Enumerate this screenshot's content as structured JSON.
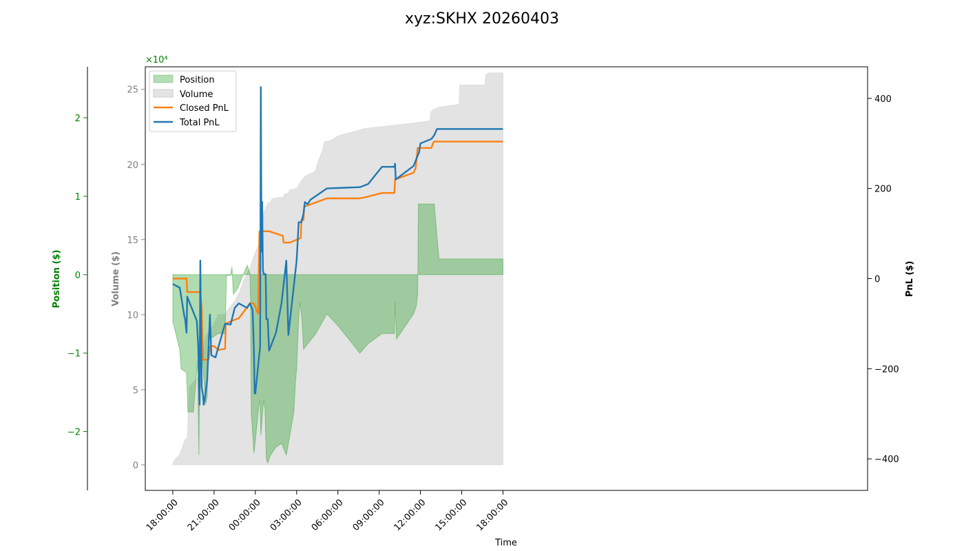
{
  "chart_data": {
    "type": "line",
    "title": "xyz:SKHX 20260403",
    "xlabel": "Time",
    "x_unit": "hours since 18:00:00",
    "xlim": [
      -2.0,
      50.5
    ],
    "x_ticks": [
      0,
      3,
      6,
      9,
      12,
      15,
      18,
      21,
      24
    ],
    "x_tick_labels": [
      "18:00:00",
      "21:00:00",
      "00:00:00",
      "03:00:00",
      "06:00:00",
      "09:00:00",
      "12:00:00",
      "15:00:00",
      "18:00:00"
    ],
    "axes": {
      "pnl": {
        "label": "PnL ($)",
        "color": "#000000",
        "ylim": [
          -470,
          470
        ],
        "ticks": [
          -400,
          -200,
          0,
          200,
          400
        ],
        "tick_labels": [
          "−400",
          "−200",
          "0",
          "200",
          "400"
        ]
      },
      "volume": {
        "label": "Volume ($)",
        "color": "#808080",
        "ylim": [
          -17000,
          265000
        ],
        "ticks": [
          0,
          50000,
          100000,
          150000,
          200000,
          250000
        ],
        "tick_labels": [
          "0",
          "5",
          "10",
          "15",
          "20",
          "25"
        ],
        "multiplier": "×10⁴"
      },
      "position": {
        "label": "Position ($)",
        "color": "#008000",
        "ylim": [
          -27500,
          26500
        ],
        "ticks": [
          -20000,
          -10000,
          0,
          10000,
          20000
        ],
        "tick_labels": [
          "−2",
          "−1",
          "0",
          "1",
          "2"
        ],
        "multiplier": "×10⁴"
      }
    },
    "legend": [
      "Position",
      "Volume",
      "Closed PnL",
      "Total PnL"
    ],
    "legend_location": "upper-left",
    "series": [
      {
        "name": "Volume",
        "type": "area",
        "axis": "volume",
        "color": "#cccccc",
        "points": [
          [
            0,
            0
          ],
          [
            0.1,
            3000
          ],
          [
            0.5,
            7000
          ],
          [
            0.9,
            17000
          ],
          [
            1,
            17000
          ],
          [
            1.05,
            18000
          ],
          [
            1.2,
            52000
          ],
          [
            1.8,
            58000
          ],
          [
            1.9,
            59000
          ],
          [
            1.95,
            63000
          ],
          [
            2,
            68000
          ],
          [
            2.1,
            70000
          ],
          [
            2.3,
            80000
          ],
          [
            2.4,
            86000
          ],
          [
            2.6,
            88000
          ],
          [
            2.7,
            90000
          ],
          [
            2.9,
            92000
          ],
          [
            3.3,
            100000
          ],
          [
            3.8,
            100000
          ],
          [
            3.9,
            102000
          ],
          [
            4.5,
            109000
          ],
          [
            4.9,
            116000
          ],
          [
            5.2,
            124000
          ],
          [
            5.6,
            131000
          ],
          [
            5.9,
            139000
          ],
          [
            6.3,
            148000
          ],
          [
            6.5,
            150000
          ],
          [
            6.55,
            158000
          ],
          [
            6.6,
            168000
          ],
          [
            6.9,
            174000
          ],
          [
            7.1,
            175000
          ],
          [
            7.2,
            177000
          ],
          [
            7.6,
            178000
          ],
          [
            8,
            178000
          ],
          [
            8.1,
            180000
          ],
          [
            8.4,
            181000
          ],
          [
            8.5,
            183000
          ],
          [
            9,
            184000
          ],
          [
            9.4,
            190000
          ],
          [
            9.6,
            192000
          ],
          [
            10,
            194000
          ],
          [
            10.3,
            195000
          ],
          [
            10.4,
            197000
          ],
          [
            10.5,
            200000
          ],
          [
            10.6,
            203000
          ],
          [
            10.9,
            210000
          ],
          [
            11,
            215000
          ],
          [
            11.5,
            216000
          ],
          [
            12,
            219000
          ],
          [
            14,
            224000
          ],
          [
            17,
            227000
          ],
          [
            18.7,
            229000
          ],
          [
            18.75,
            235000
          ],
          [
            19,
            237000
          ],
          [
            19.3,
            238000
          ],
          [
            20.8,
            240000
          ],
          [
            20.85,
            253000
          ],
          [
            21,
            253000
          ],
          [
            22.7,
            253000
          ],
          [
            22.75,
            260000
          ],
          [
            23,
            261000
          ],
          [
            24,
            261000
          ],
          [
            24,
            0
          ]
        ]
      },
      {
        "name": "Position",
        "type": "area",
        "axis": "position",
        "color": "#2ca02c",
        "points": [
          [
            0,
            -6000
          ],
          [
            0.5,
            -9500
          ],
          [
            0.6,
            -12000
          ],
          [
            1,
            -12500
          ],
          [
            1.1,
            -17500
          ],
          [
            1.5,
            -17500
          ],
          [
            1.8,
            -11000
          ],
          [
            1.85,
            -17500
          ],
          [
            1.9,
            -23000
          ],
          [
            2,
            -1200
          ],
          [
            2.1,
            -10000
          ],
          [
            2.2,
            -12000
          ],
          [
            2.4,
            -16500
          ],
          [
            2.5,
            -15500
          ],
          [
            2.6,
            -8000
          ],
          [
            2.9,
            -8000
          ],
          [
            3.3,
            -7500
          ],
          [
            3.8,
            -7500
          ],
          [
            3.9,
            -100
          ],
          [
            4.2,
            -100
          ],
          [
            4.3,
            1000
          ],
          [
            4.4,
            -2500
          ],
          [
            4.7,
            -1800
          ],
          [
            5.4,
            1200
          ],
          [
            5.6,
            200
          ],
          [
            5.65,
            -3000
          ],
          [
            5.7,
            -17500
          ],
          [
            5.9,
            -22800
          ],
          [
            6.3,
            -16000
          ],
          [
            6.35,
            -16500
          ],
          [
            6.4,
            -20500
          ],
          [
            6.6,
            -16000
          ],
          [
            6.7,
            -17000
          ],
          [
            6.8,
            -23500
          ],
          [
            6.9,
            -24000
          ],
          [
            7.1,
            -23000
          ],
          [
            7.5,
            -22000
          ],
          [
            7.9,
            -21500
          ],
          [
            8.25,
            -23000
          ],
          [
            8.4,
            -21500
          ],
          [
            8.8,
            -17500
          ],
          [
            8.9,
            -14000
          ],
          [
            9.0,
            -12000
          ],
          [
            9.15,
            -5500
          ],
          [
            9.25,
            -3500
          ],
          [
            9.4,
            -6000
          ],
          [
            9.5,
            -9500
          ],
          [
            10.4,
            -7500
          ],
          [
            11.2,
            -5000
          ],
          [
            12,
            -6500
          ],
          [
            13.6,
            -10000
          ],
          [
            14.2,
            -8800
          ],
          [
            15.2,
            -7500
          ],
          [
            16.1,
            -7500
          ],
          [
            16.15,
            -3500
          ],
          [
            16.25,
            -8200
          ],
          [
            17.5,
            -5000
          ],
          [
            17.7,
            -4000
          ],
          [
            17.8,
            -2500
          ],
          [
            17.85,
            9000
          ],
          [
            19.0,
            9000
          ],
          [
            19.25,
            4000
          ],
          [
            19.35,
            2000
          ],
          [
            24,
            2000
          ],
          [
            24,
            0
          ],
          [
            0,
            0
          ]
        ]
      },
      {
        "name": "Closed PnL",
        "type": "line",
        "axis": "pnl",
        "color": "#ff7f0e",
        "points": [
          [
            0,
            0
          ],
          [
            1.0,
            0
          ],
          [
            1.05,
            -30
          ],
          [
            2.0,
            -30
          ],
          [
            2.05,
            -50
          ],
          [
            2.1,
            -60
          ],
          [
            2.2,
            -180
          ],
          [
            2.6,
            -180
          ],
          [
            2.7,
            -150
          ],
          [
            3.0,
            -150
          ],
          [
            3.3,
            -158
          ],
          [
            3.8,
            -156
          ],
          [
            3.85,
            -100
          ],
          [
            4.2,
            -95
          ],
          [
            4.6,
            -90
          ],
          [
            4.8,
            -88
          ],
          [
            5.6,
            -55
          ],
          [
            5.9,
            -55
          ],
          [
            6.2,
            -78
          ],
          [
            6.3,
            105
          ],
          [
            6.5,
            105
          ],
          [
            7.0,
            105
          ],
          [
            8.0,
            95
          ],
          [
            8.05,
            80
          ],
          [
            8.5,
            80
          ],
          [
            9.3,
            90
          ],
          [
            9.35,
            130
          ],
          [
            9.5,
            130
          ],
          [
            9.55,
            160
          ],
          [
            9.6,
            160
          ],
          [
            11.2,
            178
          ],
          [
            13.6,
            178
          ],
          [
            14.2,
            182
          ],
          [
            15.2,
            190
          ],
          [
            16.1,
            190
          ],
          [
            16.15,
            220
          ],
          [
            17.5,
            235
          ],
          [
            17.65,
            245
          ],
          [
            17.7,
            260
          ],
          [
            17.8,
            290
          ],
          [
            18.8,
            290
          ],
          [
            18.9,
            300
          ],
          [
            19.0,
            304
          ],
          [
            24,
            304
          ]
        ]
      },
      {
        "name": "Total PnL",
        "type": "line",
        "axis": "pnl",
        "color": "#1f77b4",
        "points": [
          [
            0,
            -12
          ],
          [
            0.5,
            -20
          ],
          [
            0.85,
            -85
          ],
          [
            0.9,
            -90
          ],
          [
            1.0,
            -120
          ],
          [
            1.05,
            -40
          ],
          [
            1.7,
            -90
          ],
          [
            1.75,
            -95
          ],
          [
            1.85,
            -150
          ],
          [
            1.95,
            -280
          ],
          [
            2.0,
            40
          ],
          [
            2.1,
            -240
          ],
          [
            2.2,
            -260
          ],
          [
            2.25,
            -280
          ],
          [
            2.35,
            -260
          ],
          [
            2.5,
            -225
          ],
          [
            2.7,
            -80
          ],
          [
            2.8,
            -170
          ],
          [
            3.1,
            -175
          ],
          [
            3.8,
            -100
          ],
          [
            4.2,
            -102
          ],
          [
            4.5,
            -65
          ],
          [
            4.8,
            -55
          ],
          [
            5.4,
            -65
          ],
          [
            5.6,
            -55
          ],
          [
            5.8,
            -70
          ],
          [
            5.9,
            -160
          ],
          [
            5.95,
            -255
          ],
          [
            6.0,
            -255
          ],
          [
            6.35,
            -150
          ],
          [
            6.4,
            425
          ],
          [
            6.45,
            60
          ],
          [
            6.5,
            170
          ],
          [
            6.55,
            20
          ],
          [
            6.6,
            10
          ],
          [
            6.75,
            10
          ],
          [
            6.8,
            -90
          ],
          [
            6.9,
            -90
          ],
          [
            7.0,
            -160
          ],
          [
            7.5,
            -120
          ],
          [
            7.9,
            -55
          ],
          [
            8.25,
            40
          ],
          [
            8.4,
            -125
          ],
          [
            9.0,
            40
          ],
          [
            9.15,
            125
          ],
          [
            9.35,
            125
          ],
          [
            9.5,
            145
          ],
          [
            9.6,
            170
          ],
          [
            9.8,
            165
          ],
          [
            10.0,
            175
          ],
          [
            11.2,
            200
          ],
          [
            13.6,
            203
          ],
          [
            14.2,
            210
          ],
          [
            15.2,
            248
          ],
          [
            16.1,
            248
          ],
          [
            16.15,
            255
          ],
          [
            16.2,
            220
          ],
          [
            17.5,
            250
          ],
          [
            17.8,
            273
          ],
          [
            17.9,
            280
          ],
          [
            18.0,
            300
          ],
          [
            18.8,
            310
          ],
          [
            19.0,
            318
          ],
          [
            19.2,
            332
          ],
          [
            24,
            332
          ]
        ]
      }
    ]
  }
}
